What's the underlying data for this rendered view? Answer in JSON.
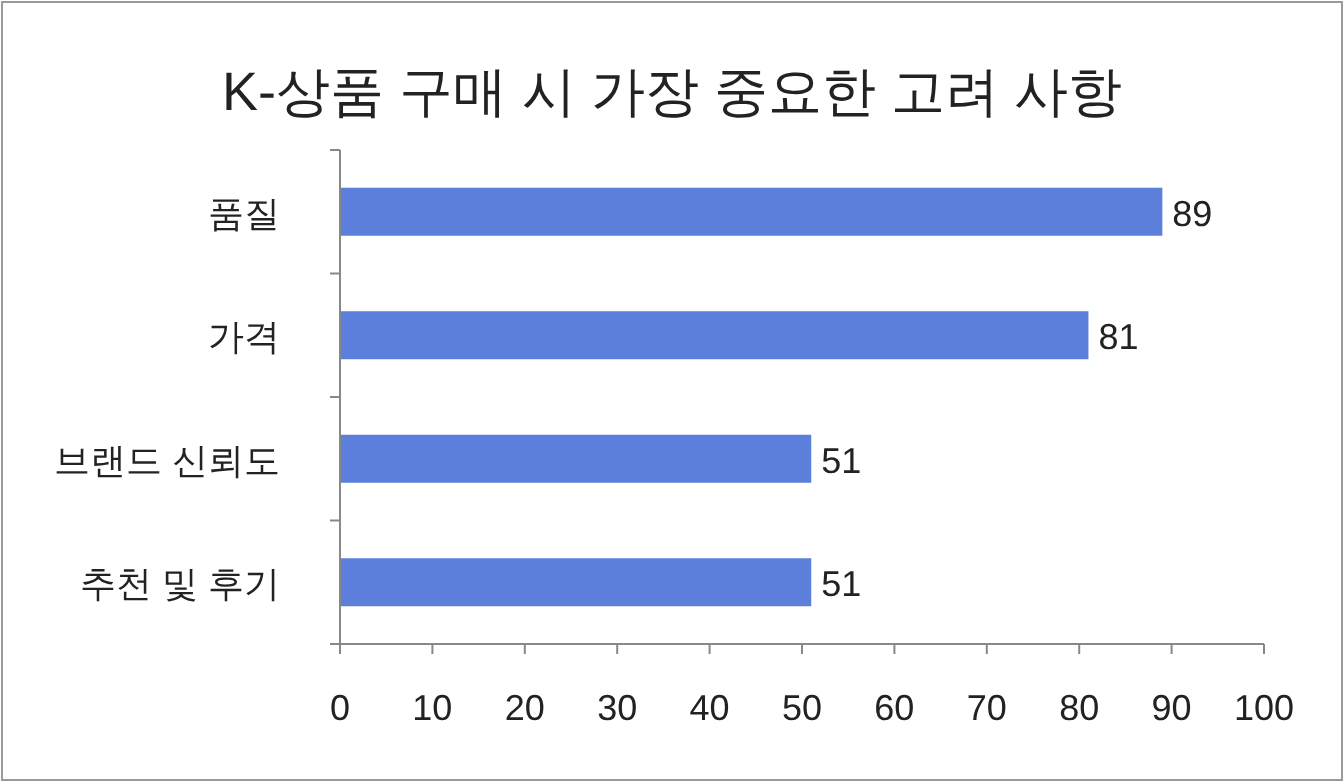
{
  "chart_data": {
    "type": "bar",
    "orientation": "horizontal",
    "title": "K-상품 구매 시 가장 중요한 고려 사항",
    "categories": [
      "품질",
      "가격",
      "브랜드 신뢰도",
      "추천 및 후기"
    ],
    "values": [
      89,
      81,
      51,
      51
    ],
    "color": "#5b7fdb",
    "xlim": [
      0,
      100
    ],
    "xticks": [
      0,
      10,
      20,
      30,
      40,
      50,
      60,
      70,
      80,
      90,
      100
    ],
    "data_labels": true,
    "grid": false
  }
}
